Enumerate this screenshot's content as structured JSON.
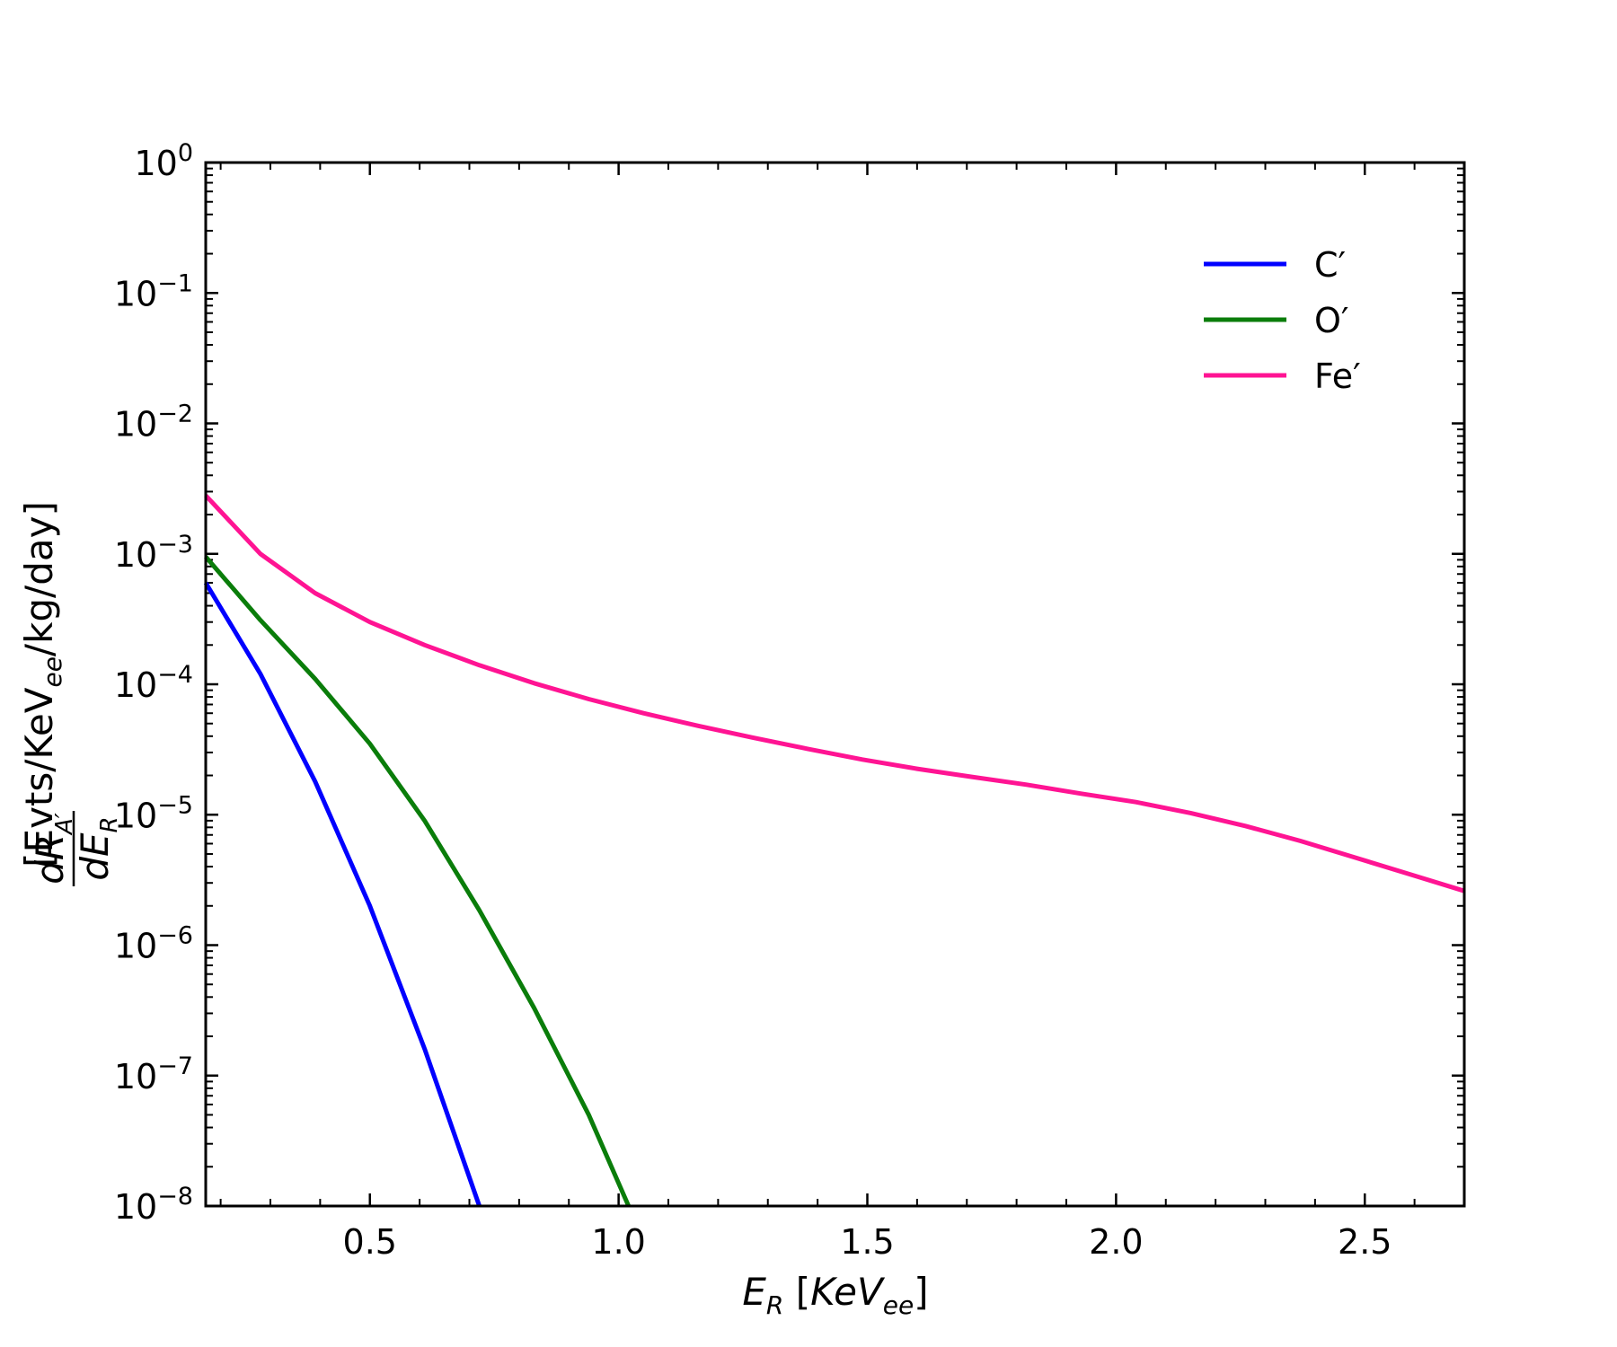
{
  "chart_data": {
    "type": "line",
    "title": "",
    "xlabel": "E_R [KeV_ee]",
    "ylabel": "[Evts/KeV_ee/kg/day]",
    "ylabel_fraction": {
      "numerator": "dR_A'",
      "denominator": "dE_R"
    },
    "xlim": [
      0.17,
      2.7
    ],
    "ylim": [
      1e-08,
      1
    ],
    "yscale": "log",
    "grid": false,
    "legend_position": "upper-right",
    "x_ticks": [
      {
        "value": 0.5,
        "label": "0.5"
      },
      {
        "value": 1.0,
        "label": "1.0"
      },
      {
        "value": 1.5,
        "label": "1.5"
      },
      {
        "value": 2.0,
        "label": "2.0"
      },
      {
        "value": 2.5,
        "label": "2.5"
      }
    ],
    "y_ticks": [
      {
        "exp": 0,
        "base": "10",
        "sup": "0"
      },
      {
        "exp": -1,
        "base": "10",
        "sup": "−1"
      },
      {
        "exp": -2,
        "base": "10",
        "sup": "−2"
      },
      {
        "exp": -3,
        "base": "10",
        "sup": "−3"
      },
      {
        "exp": -4,
        "base": "10",
        "sup": "−4"
      },
      {
        "exp": -5,
        "base": "10",
        "sup": "−5"
      },
      {
        "exp": -6,
        "base": "10",
        "sup": "−6"
      },
      {
        "exp": -7,
        "base": "10",
        "sup": "−7"
      },
      {
        "exp": -8,
        "base": "10",
        "sup": "−8"
      }
    ],
    "series": [
      {
        "name": "C′",
        "color": "#0000ff",
        "points": [
          [
            0.17,
            0.0006
          ],
          [
            0.28,
            0.00012
          ],
          [
            0.39,
            1.8e-05
          ],
          [
            0.5,
            2e-06
          ],
          [
            0.61,
            1.6e-07
          ],
          [
            0.72,
            1e-08
          ]
        ]
      },
      {
        "name": "O′",
        "color": "#0a7d0a",
        "points": [
          [
            0.17,
            0.00095
          ],
          [
            0.28,
            0.00031
          ],
          [
            0.39,
            0.00011
          ],
          [
            0.5,
            3.5e-05
          ],
          [
            0.61,
            9e-06
          ],
          [
            0.72,
            1.85e-06
          ],
          [
            0.83,
            3.3e-07
          ],
          [
            0.94,
            5e-08
          ],
          [
            1.02,
            1e-08
          ]
        ]
      },
      {
        "name": "Fe′",
        "color": "#ff1493",
        "points": [
          [
            0.17,
            0.0028
          ],
          [
            0.28,
            0.001
          ],
          [
            0.39,
            0.0005
          ],
          [
            0.5,
            0.0003
          ],
          [
            0.61,
            0.0002
          ],
          [
            0.72,
            0.00014
          ],
          [
            0.83,
            0.000102
          ],
          [
            0.94,
            7.7e-05
          ],
          [
            1.05,
            6e-05
          ],
          [
            1.16,
            4.8e-05
          ],
          [
            1.27,
            3.9e-05
          ],
          [
            1.38,
            3.2e-05
          ],
          [
            1.49,
            2.65e-05
          ],
          [
            1.6,
            2.25e-05
          ],
          [
            1.71,
            1.95e-05
          ],
          [
            1.82,
            1.7e-05
          ],
          [
            1.93,
            1.45e-05
          ],
          [
            2.04,
            1.25e-05
          ],
          [
            2.15,
            1.03e-05
          ],
          [
            2.26,
            8.2e-06
          ],
          [
            2.37,
            6.3e-06
          ],
          [
            2.48,
            4.7e-06
          ],
          [
            2.59,
            3.5e-06
          ],
          [
            2.7,
            2.6e-06
          ]
        ]
      }
    ]
  }
}
